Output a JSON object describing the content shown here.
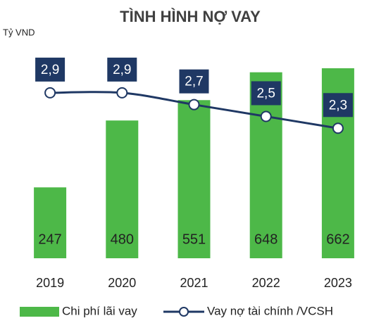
{
  "chart_data": {
    "type": "bar",
    "title": "TÌNH HÌNH NỢ VAY",
    "y_label": "Tỷ VND",
    "categories": [
      "2019",
      "2020",
      "2021",
      "2022",
      "2023"
    ],
    "series": [
      {
        "name": "Chi phí lãi vay",
        "type": "bar",
        "color": "#4db848",
        "values": [
          247,
          480,
          551,
          648,
          662
        ]
      },
      {
        "name": "Vay nợ tài chính /VCSH",
        "type": "line",
        "axis": "y2",
        "color": "#1f3864",
        "values": [
          2.9,
          2.9,
          2.7,
          2.5,
          2.3
        ],
        "value_labels": [
          "2,9",
          "2,9",
          "2,7",
          "2,5",
          "2,3"
        ]
      }
    ],
    "ylim": [
      0,
      700
    ],
    "y2lim": [
      0.1,
      3.5
    ],
    "legend": "bottom"
  }
}
